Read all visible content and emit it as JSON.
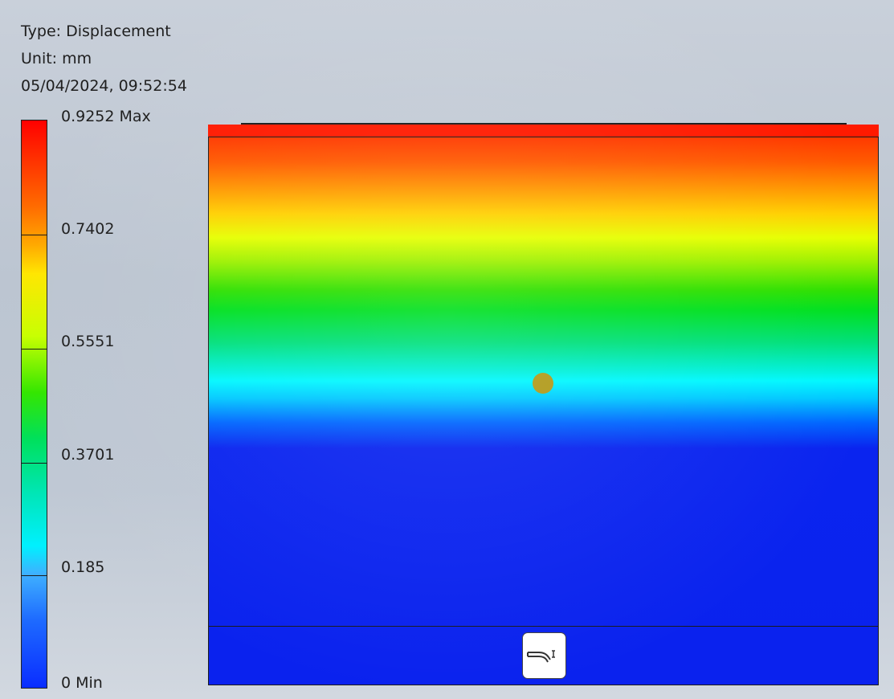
{
  "result": {
    "type_line": "Type: Displacement",
    "unit_line": "Unit: mm",
    "timestamp": "05/04/2024, 09:52:54"
  },
  "legend": {
    "labels": [
      "0.9252 Max",
      "0.7402",
      "0.5551",
      "0.3701",
      "0.185",
      "0 Min"
    ],
    "values": [
      0.9252,
      0.7402,
      0.5551,
      0.3701,
      0.185,
      0
    ],
    "colors": {
      "max": "#ff0000",
      "high": "#ffaa00",
      "mid_high": "#c8ff00",
      "mid": "#00e05a",
      "mid_low": "#00f0ff",
      "min": "#0a2dff"
    }
  },
  "model": {
    "probe_marker_color": "#b09a1a",
    "constraint_icon": "fixed-constraint-icon"
  }
}
